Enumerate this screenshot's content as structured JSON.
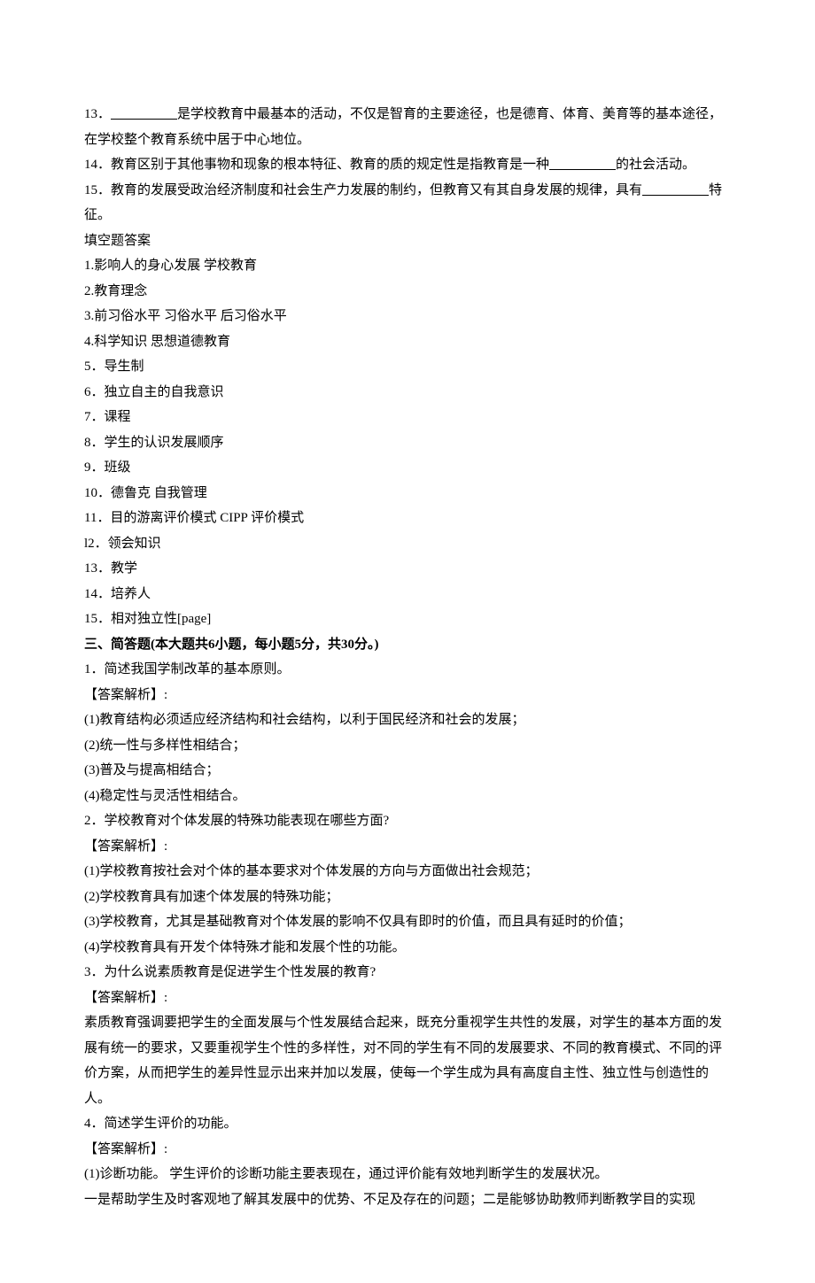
{
  "q13": {
    "prefix": "13．",
    "blank": "                    ",
    "text1": "是学校教育中最基本的活动，不仅是智育的主要途径，也是德育、体育、美育等的基本途径，在学校整个教育系统中居于中心地位。"
  },
  "q14": {
    "prefix": "14．教育区别于其他事物和现象的根本特征、教育的质的规定性是指教育是一种",
    "blank": "                    ",
    "suffix": "的社会活动。"
  },
  "q15": {
    "prefix": "15．教育的发展受政治经济制度和社会生产力发展的制约，但教育又有其自身发展的规律，具有",
    "blank": "                    ",
    "suffix": "特征。"
  },
  "fillHeader": "填空题答案",
  "answers": {
    "a1": "1.影响人的身心发展  学校教育",
    "a2": "2.教育理念",
    "a3": "3.前习俗水平  习俗水平  后习俗水平",
    "a4": "4.科学知识  思想道德教育",
    "a5": "5．导生制",
    "a6": "6．独立自主的自我意识",
    "a7": "7．课程",
    "a8": "8．学生的认识发展顺序",
    "a9": "9．班级",
    "a10": "10．德鲁克  自我管理",
    "a11": "11．目的游离评价模式  CIPP 评价模式",
    "a12": "l2．领会知识",
    "a13": "13．教学",
    "a14": "14．培养人",
    "a15": "15．相对独立性[page]"
  },
  "section3": {
    "header": "三、简答题(本大题共6小题，每小题5分，共30分。)",
    "q1": {
      "question": "1．简述我国学制改革的基本原则。",
      "label": "【答案解析】:",
      "p1": "(1)教育结构必须适应经济结构和社会结构，以利于国民经济和社会的发展；",
      "p2": "(2)统一性与多样性相结合；",
      "p3": "(3)普及与提高相结合；",
      "p4": "(4)稳定性与灵活性相结合。"
    },
    "q2": {
      "question": "2．学校教育对个体发展的特殊功能表现在哪些方面?",
      "label": "【答案解析】:",
      "p1": "(1)学校教育按社会对个体的基本要求对个体发展的方向与方面做出社会规范；",
      "p2": "(2)学校教育具有加速个体发展的特殊功能；",
      "p3": "(3)学校教育，尤其是基础教育对个体发展的影响不仅具有即时的价值，而且具有延时的价值；",
      "p4": "(4)学校教育具有开发个体特殊才能和发展个性的功能。"
    },
    "q3": {
      "question": "3．为什么说素质教育是促进学生个性发展的教育?",
      "label": "【答案解析】:",
      "p1": "素质教育强调要把学生的全面发展与个性发展结合起来，既充分重视学生共性的发展，对学生的基本方面的发展有统一的要求，又要重视学生个性的多样性，对不同的学生有不同的发展要求、不同的教育模式、不同的评价方案，从而把学生的差异性显示出来并加以发展，使每一个学生成为具有高度自主性、独立性与创造性的人。"
    },
    "q4": {
      "question": "4．简述学生评价的功能。",
      "label": "【答案解析】:",
      "p1": "(1)诊断功能。 学生评价的诊断功能主要表现在，通过评价能有效地判断学生的发展状况。",
      "p2": "一是帮助学生及时客观地了解其发展中的优势、不足及存在的问题；二是能够协助教师判断教学目的实现"
    }
  }
}
